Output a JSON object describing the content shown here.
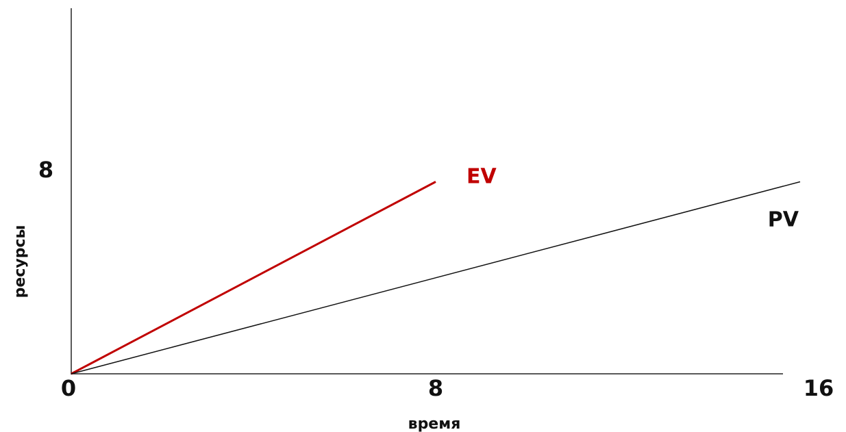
{
  "chart_data": {
    "type": "line",
    "title": "",
    "xlabel": "время",
    "ylabel": "ресурсы",
    "xlim": [
      0,
      16
    ],
    "ylim": [
      0,
      15
    ],
    "x_ticks": [
      "0",
      "8",
      "16"
    ],
    "y_ticks": [
      "8"
    ],
    "grid": false,
    "legend": "none",
    "series": [
      {
        "name": "EV",
        "color": "#c00000",
        "x": [
          0,
          8
        ],
        "y": [
          0,
          8
        ]
      },
      {
        "name": "PV",
        "color": "#111111",
        "x": [
          0,
          16
        ],
        "y": [
          0,
          8
        ]
      }
    ]
  }
}
